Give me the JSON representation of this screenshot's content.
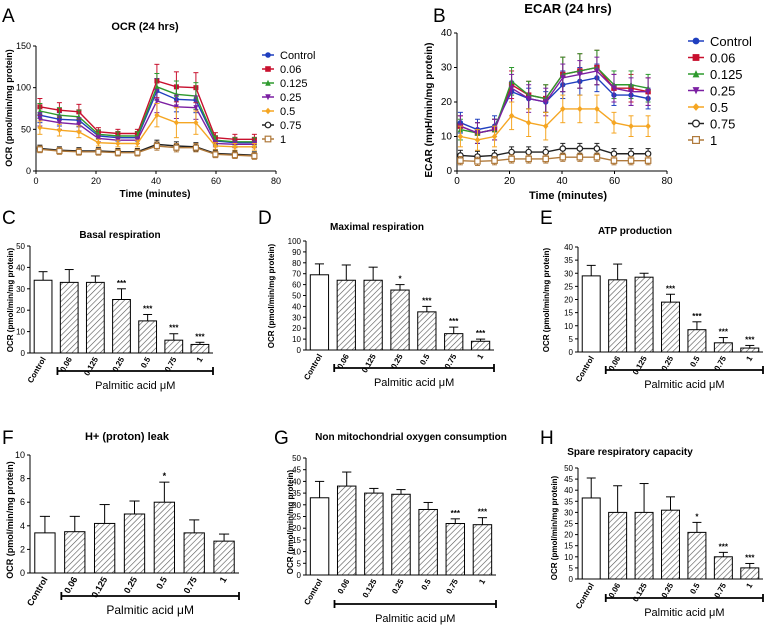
{
  "doc": {
    "mu": "μ"
  },
  "panels": {
    "A": {
      "label": "A",
      "title": "OCR (24 hrs)"
    },
    "B": {
      "label": "B",
      "title": "ECAR (24 hrs)"
    },
    "C": {
      "label": "C",
      "title": "Basal respiration"
    },
    "D": {
      "label": "D",
      "title": "Maximal respiration"
    },
    "E": {
      "label": "E",
      "title": "ATP production"
    },
    "F": {
      "label": "F",
      "title": "H+ (proton) leak"
    },
    "G": {
      "label": "G",
      "title": "Non mitochondrial oxygen consumption"
    },
    "H": {
      "label": "H",
      "title": "Spare respiratory capacity"
    }
  },
  "legend_a": [
    "Control",
    "0.06",
    "0.125",
    "0.25",
    "0.5",
    "0.75",
    "1"
  ],
  "legend_b": [
    "Control",
    "0.06",
    "0.125",
    "0.25",
    "0.5",
    "0.75",
    "1"
  ],
  "series_colors": [
    "#1f3fbf",
    "#c8102e",
    "#2e9a2e",
    "#7b1fa2",
    "#f5a623",
    "#222222",
    "#b07a3c"
  ],
  "chart_data": [
    {
      "type": "line",
      "id": "A",
      "title": "OCR (24 hrs)",
      "xlabel": "Time (minutes)",
      "ylabel": "OCR (pmol/min/mg protein)",
      "xlim": [
        0,
        80
      ],
      "ylim": [
        0,
        150
      ],
      "xticks": [
        "0",
        "20",
        "40",
        "60",
        "80"
      ],
      "yticks": [
        "0",
        "50",
        "100",
        "150"
      ],
      "x": [
        1.3,
        7.8,
        14.3,
        20.8,
        27.3,
        33.8,
        40.3,
        46.8,
        53.3,
        59.8,
        66.3,
        72.8
      ],
      "series": [
        {
          "name": "Control",
          "values": [
            67,
            62,
            61,
            42,
            40,
            40,
            96,
            86,
            85,
            36,
            34,
            34
          ],
          "err": [
            9,
            8,
            8,
            4,
            4,
            4,
            15,
            15,
            15,
            5,
            5,
            5
          ]
        },
        {
          "name": "0.06",
          "values": [
            77,
            73,
            71,
            47,
            45,
            45,
            108,
            101,
            100,
            40,
            38,
            38
          ],
          "err": [
            10,
            9,
            9,
            5,
            5,
            5,
            20,
            18,
            18,
            6,
            6,
            6
          ]
        },
        {
          "name": "0.125",
          "values": [
            72,
            67,
            65,
            44,
            42,
            42,
            101,
            92,
            90,
            37,
            35,
            35
          ],
          "err": [
            9,
            9,
            8,
            5,
            5,
            5,
            16,
            16,
            16,
            5,
            5,
            5
          ]
        },
        {
          "name": "0.25",
          "values": [
            62,
            58,
            56,
            39,
            37,
            37,
            84,
            77,
            76,
            33,
            32,
            32
          ],
          "err": [
            8,
            8,
            8,
            4,
            4,
            4,
            14,
            14,
            14,
            4,
            4,
            4
          ]
        },
        {
          "name": "0.5",
          "values": [
            52,
            49,
            47,
            34,
            33,
            33,
            67,
            58,
            58,
            30,
            29,
            29
          ],
          "err": [
            8,
            7,
            7,
            4,
            4,
            4,
            14,
            18,
            14,
            4,
            4,
            4
          ]
        },
        {
          "name": "0.75",
          "values": [
            27,
            25,
            24,
            24,
            23,
            23,
            32,
            30,
            29,
            21,
            20,
            19
          ],
          "err": [
            4,
            4,
            4,
            4,
            4,
            4,
            5,
            5,
            5,
            4,
            4,
            4
          ]
        },
        {
          "name": "1",
          "values": [
            26,
            24,
            23,
            23,
            22,
            22,
            30,
            28,
            28,
            20,
            19,
            18
          ],
          "err": [
            4,
            4,
            4,
            4,
            4,
            4,
            5,
            5,
            5,
            4,
            4,
            4
          ]
        }
      ]
    },
    {
      "type": "line",
      "id": "B",
      "title": "ECAR (24 hrs)",
      "xlabel": "Time (minutes)",
      "ylabel": "ECAR (mpH/min/mg protein)",
      "xlim": [
        0,
        80
      ],
      "ylim": [
        0,
        40
      ],
      "xticks": [
        "0",
        "20",
        "40",
        "60",
        "80"
      ],
      "yticks": [
        "0",
        "10",
        "20",
        "30",
        "40"
      ],
      "x": [
        1.3,
        7.8,
        14.3,
        20.8,
        27.3,
        33.8,
        40.3,
        46.8,
        53.3,
        59.8,
        66.3,
        72.8
      ],
      "series": [
        {
          "name": "Control",
          "values": [
            14,
            12,
            13,
            23,
            21,
            20,
            25,
            26,
            27,
            22,
            22,
            21
          ],
          "err": [
            3,
            3,
            3,
            3,
            3,
            3,
            4,
            4,
            4,
            3,
            3,
            3
          ]
        },
        {
          "name": "0.06",
          "values": [
            13,
            11,
            12,
            25,
            22,
            21,
            28,
            29,
            30,
            24,
            24,
            23
          ],
          "err": [
            3,
            3,
            3,
            4,
            4,
            4,
            5,
            5,
            5,
            4,
            4,
            4
          ]
        },
        {
          "name": "0.125",
          "values": [
            12,
            11,
            12,
            26,
            22,
            21,
            28,
            29,
            30,
            25,
            25,
            24
          ],
          "err": [
            3,
            3,
            3,
            4,
            4,
            4,
            5,
            5,
            5,
            4,
            4,
            4
          ]
        },
        {
          "name": "0.25",
          "values": [
            13,
            11,
            12,
            24,
            21,
            20,
            27,
            28,
            29,
            24,
            23,
            23
          ],
          "err": [
            3,
            3,
            3,
            4,
            4,
            4,
            4,
            4,
            4,
            4,
            4,
            4
          ]
        },
        {
          "name": "0.5",
          "values": [
            10,
            9,
            10,
            16,
            14,
            13,
            18,
            18,
            18,
            14,
            13,
            13
          ],
          "err": [
            3,
            3,
            3,
            4,
            4,
            4,
            4,
            4,
            4,
            3,
            3,
            3
          ]
        },
        {
          "name": "0.75",
          "values": [
            4.5,
            4.2,
            4.5,
            5.5,
            5.5,
            5.5,
            6.5,
            6.5,
            6.5,
            5,
            5,
            5
          ],
          "err": [
            1.5,
            1.5,
            1.5,
            1.5,
            1.5,
            1.5,
            1.5,
            1.5,
            1.5,
            1.5,
            1.5,
            1.5
          ]
        },
        {
          "name": "1",
          "values": [
            3,
            2.8,
            3,
            3.5,
            3.5,
            3.5,
            4,
            4,
            4,
            3,
            3,
            3
          ],
          "err": [
            1.2,
            1.2,
            1.2,
            1.2,
            1.2,
            1.2,
            1.2,
            1.2,
            1.2,
            1.2,
            1.2,
            1.2
          ]
        }
      ]
    },
    {
      "type": "bar",
      "id": "C",
      "title": "Basal respiration",
      "ylabel": "OCR (pmol/min/mg protein)",
      "ylim": [
        0,
        50
      ],
      "yticks": [
        "0",
        "10",
        "20",
        "30",
        "40",
        "50"
      ],
      "categories": [
        "Control",
        "0.06",
        "0.125",
        "0.25",
        "0.5",
        "0.75",
        "1"
      ],
      "values": [
        34,
        33,
        33,
        25,
        15,
        6,
        4
      ],
      "errors": [
        4,
        6,
        3,
        5,
        3,
        3,
        1
      ],
      "significance": [
        "",
        "",
        "",
        "***",
        "***",
        "***",
        "***"
      ],
      "group_label": "Palmitic acid μM"
    },
    {
      "type": "bar",
      "id": "D",
      "title": "Maximal respiration",
      "ylabel": "OCR (pmol/min/mg protein)",
      "ylim": [
        0,
        100
      ],
      "yticks": [
        "0",
        "10",
        "20",
        "30",
        "40",
        "50",
        "60",
        "70",
        "80",
        "90",
        "100"
      ],
      "categories": [
        "Control",
        "0.06",
        "0.125",
        "0.25",
        "0.5",
        "0.75",
        "1"
      ],
      "values": [
        69,
        64,
        64,
        55,
        35,
        15,
        8
      ],
      "errors": [
        10,
        14,
        12,
        5,
        5,
        6,
        2
      ],
      "significance": [
        "",
        "",
        "",
        "*",
        "***",
        "***",
        "***"
      ],
      "group_label": "Palmitic acid μM"
    },
    {
      "type": "bar",
      "id": "E",
      "title": "ATP production",
      "ylabel": "OCR (pmol/min/mg protein)",
      "ylim": [
        0,
        40
      ],
      "yticks": [
        "0",
        "5",
        "10",
        "15",
        "20",
        "25",
        "30",
        "35",
        "40"
      ],
      "categories": [
        "Control",
        "0.06",
        "0.125",
        "0.25",
        "0.5",
        "0.75",
        "1"
      ],
      "values": [
        29,
        27.5,
        28.5,
        19,
        8.5,
        3.5,
        1.5
      ],
      "errors": [
        4,
        6,
        1.5,
        3,
        3,
        2,
        1
      ],
      "significance": [
        "",
        "",
        "",
        "***",
        "***",
        "***",
        "***"
      ],
      "group_label": "Palmitic acid μM"
    },
    {
      "type": "bar",
      "id": "F",
      "title": "H+ (proton) leak",
      "ylabel": "OCR (pmol/min/mg protein)",
      "ylim": [
        0,
        10
      ],
      "yticks": [
        "0",
        "2",
        "4",
        "6",
        "8",
        "10"
      ],
      "categories": [
        "Control",
        "0.06",
        "0.125",
        "0.25",
        "0.5",
        "0.75",
        "1"
      ],
      "values": [
        3.4,
        3.5,
        4.2,
        5,
        6,
        3.4,
        2.7
      ],
      "errors": [
        1.4,
        1.3,
        1.6,
        1.1,
        1.7,
        1.1,
        0.6
      ],
      "significance": [
        "",
        "",
        "",
        "",
        "*",
        "",
        ""
      ],
      "group_label": "Palmitic acid μM"
    },
    {
      "type": "bar",
      "id": "G",
      "title": "Non mitochondrial oxygen consumption",
      "ylabel": "OCR (pmol/min/mg protein)",
      "ylim": [
        0,
        50
      ],
      "yticks": [
        "0",
        "5",
        "10",
        "15",
        "20",
        "25",
        "30",
        "35",
        "40",
        "45",
        "50"
      ],
      "categories": [
        "Control",
        "0.06",
        "0.125",
        "0.25",
        "0.5",
        "0.75",
        "1"
      ],
      "values": [
        33,
        38,
        35,
        34.5,
        28,
        22,
        21.5
      ],
      "errors": [
        7,
        6,
        2,
        2,
        3,
        2,
        3
      ],
      "significance": [
        "",
        "",
        "",
        "",
        "",
        "***",
        "***"
      ],
      "group_label": "Palmitic acid μM"
    },
    {
      "type": "bar",
      "id": "H",
      "title": "Spare respiratory capacity",
      "ylabel": "OCR (pmol/min/mg protein)",
      "ylim": [
        0,
        50
      ],
      "yticks": [
        "0",
        "5",
        "10",
        "15",
        "20",
        "25",
        "30",
        "35",
        "40",
        "45",
        "50"
      ],
      "categories": [
        "Control",
        "0.06",
        "0.125",
        "0.25",
        "0.5",
        "0.75",
        "1"
      ],
      "values": [
        36.5,
        30,
        30,
        31,
        21,
        10,
        5
      ],
      "errors": [
        9,
        12,
        13,
        6,
        4.5,
        2,
        2
      ],
      "significance": [
        "",
        "",
        "",
        "",
        "*",
        "***",
        "***"
      ],
      "group_label": "Palmitic acid μM"
    }
  ]
}
